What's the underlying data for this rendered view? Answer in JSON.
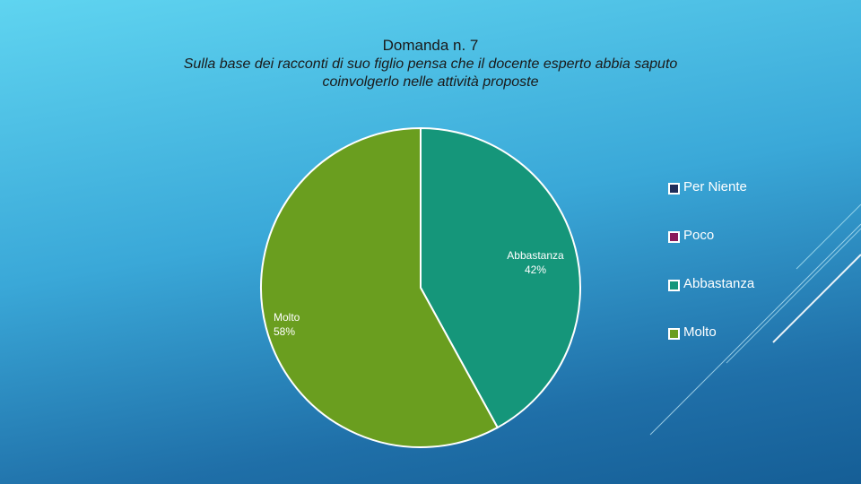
{
  "title_line1": "Domanda n. 7",
  "title_line2a": "Sulla base dei racconti di suo figlio pensa che il docente esperto abbia saputo",
  "title_line2b": "coinvolgerlo nelle attività proposte",
  "colors": {
    "per_niente": "#1f2d5a",
    "poco": "#8a1a5a",
    "abbastanza": "#15967a",
    "molto": "#6a9e1f"
  },
  "chart_data": {
    "type": "pie",
    "title": "Domanda n. 7 — Sulla base dei racconti di suo figlio pensa che il docente esperto abbia saputo coinvolgerlo nelle attività proposte",
    "categories": [
      "Per Niente",
      "Poco",
      "Abbastanza",
      "Molto"
    ],
    "values": [
      0,
      0,
      42,
      58
    ],
    "data_labels": [
      {
        "category": "Abbastanza",
        "text": "42%"
      },
      {
        "category": "Molto",
        "text": "58%"
      }
    ],
    "legend_position": "right"
  },
  "legend": [
    {
      "label": "Per Niente",
      "color": "#1f2d5a"
    },
    {
      "label": "Poco",
      "color": "#8a1a5a"
    },
    {
      "label": "Abbastanza",
      "color": "#15967a"
    },
    {
      "label": "Molto",
      "color": "#6a9e1f"
    }
  ]
}
